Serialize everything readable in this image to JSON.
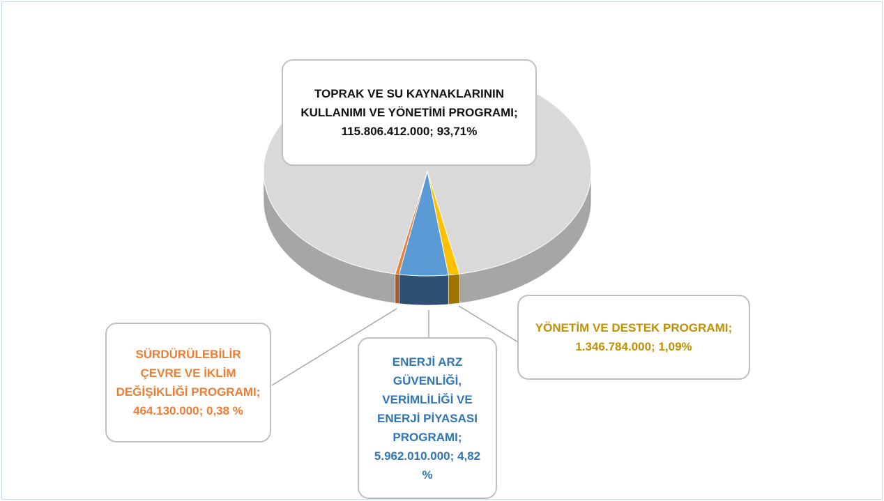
{
  "chart_data": {
    "type": "pie",
    "categories": [
      "TOPRAK VE SU KAYNAKLARININ KULLANIMI VE YÖNETİMİ PROGRAMI",
      "YÖNETİM VE DESTEK PROGRAMI",
      "ENERJİ ARZ GÜVENLİĞİ, VERİMLİLİĞİ VE ENERJİ PİYASASI PROGRAMI",
      "SÜRDÜRÜLEBİLİR ÇEVRE VE İKLİM DEĞİŞİKLİĞİ PROGRAMI"
    ],
    "values": [
      115806412000,
      1346784000,
      5962010000,
      464130000
    ],
    "value_labels": [
      "115.806.412.000",
      "1.346.784.000",
      "5.962.010.000",
      "464.130.000"
    ],
    "percentages": [
      93.71,
      1.09,
      4.82,
      0.38
    ],
    "percentage_labels": [
      "93,71%",
      "1,09%",
      "4,82 %",
      "0,38 %"
    ],
    "label_separator": ";",
    "colors": [
      "#d9d9d9",
      "#ffc000",
      "#5b9bd5",
      "#ed7d31"
    ],
    "side_colors": [
      "#a6a6a6",
      "#9c7600",
      "#2f4f73",
      "#b0561c"
    ],
    "label_colors": [
      "#111111",
      "#bf9000",
      "#2e75b6",
      "#ed7d31"
    ]
  }
}
